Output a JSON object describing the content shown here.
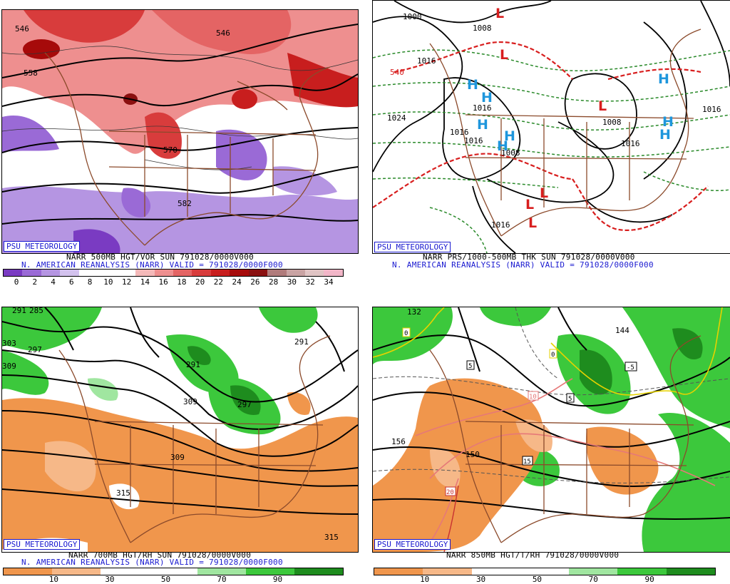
{
  "panels": [
    {
      "badge": "PSU METEOROLOGY",
      "caption1": "NARR 500MB HGT/VOR SUN 791028/0000V000",
      "caption2": "N. AMERICAN REANALYSIS (NARR) VALID = 791028/0000F000",
      "colorbar_ticks": [
        "0",
        "2",
        "4",
        "6",
        "8",
        "10",
        "12",
        "14",
        "16",
        "18",
        "20",
        "22",
        "24",
        "26",
        "28",
        "30",
        "32",
        "34"
      ],
      "colorbar_colors": [
        "#7a3bc2",
        "#9a6ad6",
        "#b595e2",
        "#d3c2ee",
        "#ffffff",
        "#ffffff",
        "#ffffff",
        "#f4b9b9",
        "#ee8f8f",
        "#e46464",
        "#d83c3c",
        "#c81e1e",
        "#a60a0a",
        "#8a1010",
        "#b07b7b",
        "#c9a3a3",
        "#e0c4c4",
        "#f2b6c8"
      ],
      "contour_labels": [
        "546",
        "558",
        "546",
        "570",
        "582"
      ]
    },
    {
      "badge": "PSU METEOROLOGY",
      "caption1": "NARR PRS/1000-500MB THK SUN 791028/0000V000",
      "caption2": "N. AMERICAN REANALYSIS (NARR) VALID = 791028/0000F000",
      "isobar_labels": [
        "1000",
        "1008",
        "1016",
        "1024",
        "1016",
        "1016",
        "1016",
        "1008",
        "1016",
        "1008",
        "1016",
        "1016"
      ],
      "thickness_label": "540",
      "highs": [
        "H",
        "H",
        "H",
        "H",
        "H",
        "H",
        "H",
        "H"
      ],
      "lows": [
        "L",
        "L",
        "L",
        "L",
        "L",
        "L"
      ]
    },
    {
      "badge": "PSU METEOROLOGY",
      "caption1": "NARR 700MB HGT/RH SUN 791028/0000V000",
      "caption2": "N. AMERICAN REANALYSIS (NARR) VALID = 791028/0000F000",
      "colorbar_ticks": [
        "10",
        "30",
        "50",
        "70",
        "90"
      ],
      "colorbar_colors": [
        "#f0964c",
        "#f6b888",
        "#ffffff",
        "#ffffff",
        "#a0e6a0",
        "#3cc83c",
        "#1e8c1e"
      ],
      "contour_labels": [
        "291",
        "285",
        "297",
        "303",
        "309",
        "291",
        "297",
        "291",
        "309",
        "309",
        "315",
        "315"
      ]
    },
    {
      "badge": "PSU METEOROLOGY",
      "caption1": "NARR 850MB HGT/T/RH 791028/0000V000",
      "caption2": "",
      "colorbar_ticks": [
        "10",
        "30",
        "50",
        "70",
        "90"
      ],
      "colorbar_colors": [
        "#f0964c",
        "#f6b888",
        "#ffffff",
        "#ffffff",
        "#a0e6a0",
        "#3cc83c",
        "#1e8c1e"
      ],
      "contour_labels": [
        "132",
        "144",
        "156",
        "150"
      ],
      "temp_labels": [
        "0",
        "0",
        "-5",
        "5",
        "5",
        "10",
        "15",
        "20"
      ]
    }
  ]
}
